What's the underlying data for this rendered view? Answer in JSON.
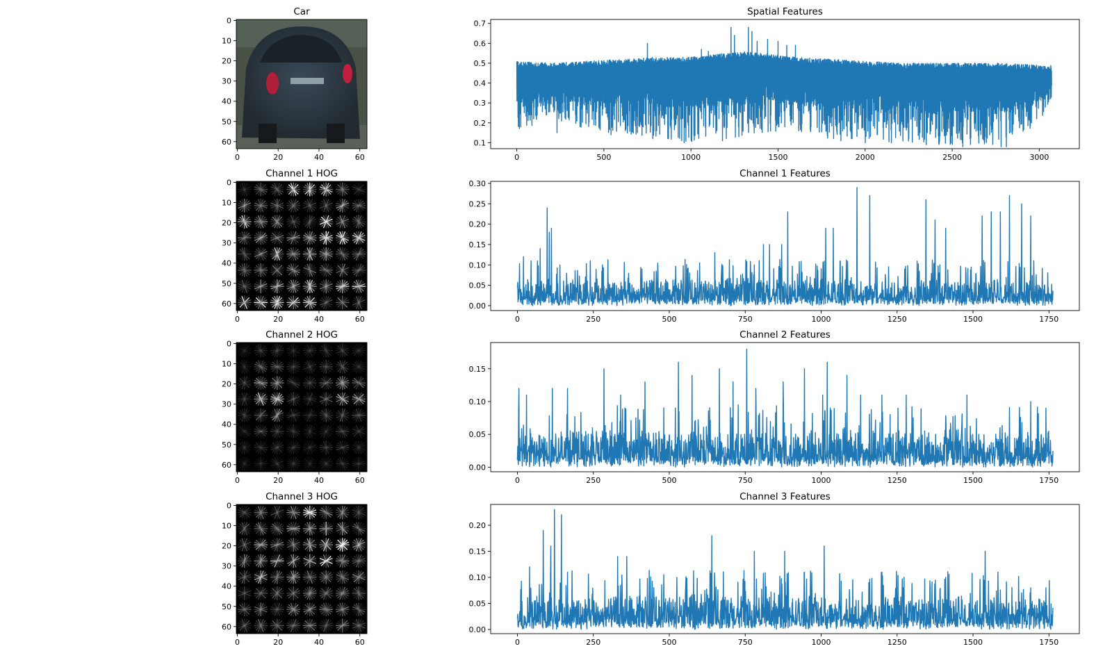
{
  "colors": {
    "line": "#1f77b4",
    "background": "#ffffff",
    "axes": "#000000"
  },
  "images": [
    {
      "title": "Car",
      "kind": "photo",
      "xticks": [
        0,
        20,
        40,
        60
      ],
      "yticks": [
        0,
        10,
        20,
        30,
        40,
        50,
        60
      ],
      "extent": [
        0,
        64
      ]
    },
    {
      "title": "Channel 1 HOG",
      "kind": "hog",
      "cell_strength": [
        [
          0.2,
          0.45,
          0.4,
          0.85,
          0.9,
          0.8,
          0.55,
          0.3
        ],
        [
          0.6,
          0.55,
          0.45,
          0.4,
          0.35,
          0.4,
          0.6,
          0.45
        ],
        [
          0.8,
          0.7,
          0.55,
          0.4,
          0.4,
          0.85,
          0.55,
          0.5
        ],
        [
          0.55,
          0.6,
          0.5,
          0.55,
          0.6,
          0.95,
          0.85,
          0.8
        ],
        [
          0.4,
          0.55,
          0.9,
          0.6,
          0.7,
          0.6,
          0.55,
          0.45
        ],
        [
          0.4,
          0.5,
          0.5,
          0.55,
          0.55,
          0.6,
          0.55,
          0.45
        ],
        [
          0.5,
          0.6,
          0.65,
          0.75,
          0.8,
          0.6,
          0.7,
          0.75
        ],
        [
          0.9,
          0.85,
          0.85,
          0.85,
          0.8,
          0.45,
          0.6,
          0.4
        ]
      ]
    },
    {
      "title": "Channel 2 HOG",
      "kind": "hog",
      "cell_strength": [
        [
          0.15,
          0.3,
          0.25,
          0.2,
          0.2,
          0.25,
          0.3,
          0.2
        ],
        [
          0.2,
          0.4,
          0.35,
          0.25,
          0.25,
          0.3,
          0.35,
          0.25
        ],
        [
          0.3,
          0.6,
          0.55,
          0.3,
          0.3,
          0.4,
          0.55,
          0.5
        ],
        [
          0.3,
          0.95,
          0.9,
          0.35,
          0.3,
          0.45,
          0.75,
          0.7
        ],
        [
          0.25,
          0.55,
          0.65,
          0.3,
          0.25,
          0.35,
          0.4,
          0.35
        ],
        [
          0.2,
          0.3,
          0.3,
          0.25,
          0.2,
          0.3,
          0.35,
          0.25
        ],
        [
          0.15,
          0.25,
          0.25,
          0.2,
          0.2,
          0.25,
          0.3,
          0.2
        ],
        [
          0.15,
          0.2,
          0.2,
          0.2,
          0.15,
          0.2,
          0.25,
          0.2
        ]
      ]
    },
    {
      "title": "Channel 3 HOG",
      "kind": "hog",
      "cell_strength": [
        [
          0.3,
          0.55,
          0.4,
          0.85,
          0.9,
          0.65,
          0.5,
          0.35
        ],
        [
          0.45,
          0.55,
          0.5,
          0.6,
          0.55,
          0.7,
          0.65,
          0.45
        ],
        [
          0.5,
          0.6,
          0.55,
          0.65,
          0.7,
          0.75,
          0.95,
          0.7
        ],
        [
          0.55,
          0.6,
          0.8,
          0.65,
          0.8,
          0.85,
          0.7,
          0.6
        ],
        [
          0.4,
          0.7,
          0.5,
          0.55,
          0.55,
          0.6,
          0.65,
          0.55
        ],
        [
          0.35,
          0.45,
          0.45,
          0.5,
          0.5,
          0.5,
          0.5,
          0.45
        ],
        [
          0.4,
          0.5,
          0.5,
          0.55,
          0.55,
          0.5,
          0.55,
          0.45
        ],
        [
          0.45,
          0.5,
          0.45,
          0.5,
          0.5,
          0.45,
          0.5,
          0.45
        ]
      ]
    }
  ],
  "chart_data": [
    {
      "type": "line",
      "title": "Spatial Features",
      "xlabel": "",
      "ylabel": "",
      "xlim": [
        -150,
        3230
      ],
      "ylim": [
        0.07,
        0.72
      ],
      "xticks": [
        0,
        500,
        1000,
        1500,
        2000,
        2500,
        3000
      ],
      "yticks": [
        0.1,
        0.2,
        0.3,
        0.4,
        0.5,
        0.6,
        0.7
      ],
      "grid": false,
      "n": 3072,
      "envelope": {
        "x": [
          0,
          200,
          400,
          600,
          800,
          1000,
          1200,
          1300,
          1400,
          1500,
          1600,
          1800,
          2000,
          2200,
          2400,
          2600,
          2800,
          3000,
          3072
        ],
        "upper": [
          0.51,
          0.5,
          0.51,
          0.52,
          0.53,
          0.53,
          0.55,
          0.56,
          0.55,
          0.54,
          0.53,
          0.52,
          0.51,
          0.5,
          0.5,
          0.5,
          0.5,
          0.49,
          0.49
        ],
        "lower": [
          0.16,
          0.22,
          0.17,
          0.14,
          0.13,
          0.1,
          0.11,
          0.12,
          0.14,
          0.16,
          0.15,
          0.12,
          0.11,
          0.1,
          0.09,
          0.09,
          0.09,
          0.2,
          0.32
        ]
      },
      "upper_spikes": [
        [
          750,
          0.6
        ],
        [
          1230,
          0.68
        ],
        [
          1250,
          0.64
        ],
        [
          1330,
          0.68
        ],
        [
          1350,
          0.66
        ],
        [
          1380,
          0.61
        ],
        [
          1440,
          0.62
        ],
        [
          1500,
          0.61
        ],
        [
          1550,
          0.59
        ],
        [
          1600,
          0.59
        ],
        [
          1060,
          0.57
        ],
        [
          1100,
          0.56
        ]
      ],
      "lower_dips": [
        [
          230,
          0.15
        ],
        [
          540,
          0.14
        ],
        [
          780,
          0.12
        ],
        [
          960,
          0.1
        ],
        [
          1180,
          0.11
        ],
        [
          1860,
          0.11
        ],
        [
          2000,
          0.1
        ],
        [
          2150,
          0.1
        ],
        [
          2350,
          0.09
        ],
        [
          2560,
          0.08
        ],
        [
          2780,
          0.08
        ],
        [
          2810,
          0.08
        ]
      ]
    },
    {
      "type": "line",
      "title": "Channel 1 Features",
      "xlabel": "",
      "ylabel": "",
      "xlim": [
        -88,
        1850
      ],
      "ylim": [
        -0.012,
        0.305
      ],
      "xticks": [
        0,
        250,
        500,
        750,
        1000,
        1250,
        1500,
        1750
      ],
      "yticks": [
        0.0,
        0.05,
        0.1,
        0.15,
        0.2,
        0.25,
        0.3
      ],
      "grid": false,
      "n": 1764,
      "noise_range": [
        0.0,
        0.06
      ],
      "peaks": [
        [
          20,
          0.12
        ],
        [
          45,
          0.11
        ],
        [
          75,
          0.14
        ],
        [
          98,
          0.24
        ],
        [
          105,
          0.18
        ],
        [
          112,
          0.19
        ],
        [
          140,
          0.1
        ],
        [
          240,
          0.11
        ],
        [
          280,
          0.1
        ],
        [
          410,
          0.09
        ],
        [
          560,
          0.09
        ],
        [
          650,
          0.13
        ],
        [
          780,
          0.1
        ],
        [
          810,
          0.15
        ],
        [
          830,
          0.15
        ],
        [
          870,
          0.15
        ],
        [
          890,
          0.23
        ],
        [
          1015,
          0.19
        ],
        [
          1040,
          0.19
        ],
        [
          1118,
          0.29
        ],
        [
          1160,
          0.27
        ],
        [
          1345,
          0.26
        ],
        [
          1375,
          0.21
        ],
        [
          1410,
          0.19
        ],
        [
          1530,
          0.22
        ],
        [
          1560,
          0.23
        ],
        [
          1590,
          0.23
        ],
        [
          1620,
          0.27
        ],
        [
          1660,
          0.25
        ],
        [
          1690,
          0.22
        ]
      ]
    },
    {
      "type": "line",
      "title": "Channel 2 Features",
      "xlabel": "",
      "ylabel": "",
      "xlim": [
        -88,
        1850
      ],
      "ylim": [
        -0.007,
        0.19
      ],
      "xticks": [
        0,
        250,
        500,
        750,
        1000,
        1250,
        1500,
        1750
      ],
      "yticks": [
        0.0,
        0.05,
        0.1,
        0.15
      ],
      "grid": false,
      "n": 1764,
      "noise_range": [
        0.0,
        0.05
      ],
      "peaks": [
        [
          5,
          0.12
        ],
        [
          30,
          0.11
        ],
        [
          115,
          0.12
        ],
        [
          165,
          0.12
        ],
        [
          285,
          0.15
        ],
        [
          340,
          0.11
        ],
        [
          420,
          0.13
        ],
        [
          530,
          0.16
        ],
        [
          575,
          0.14
        ],
        [
          665,
          0.15
        ],
        [
          710,
          0.13
        ],
        [
          755,
          0.18
        ],
        [
          785,
          0.12
        ],
        [
          875,
          0.13
        ],
        [
          945,
          0.15
        ],
        [
          1005,
          0.11
        ],
        [
          1020,
          0.16
        ],
        [
          1085,
          0.14
        ],
        [
          1130,
          0.11
        ],
        [
          1200,
          0.11
        ],
        [
          1280,
          0.11
        ],
        [
          1480,
          0.11
        ],
        [
          1690,
          0.1
        ],
        [
          1740,
          0.09
        ]
      ]
    },
    {
      "type": "line",
      "title": "Channel 3 Features",
      "xlabel": "",
      "ylabel": "",
      "xlim": [
        -88,
        1850
      ],
      "ylim": [
        -0.008,
        0.24
      ],
      "xticks": [
        0,
        250,
        500,
        750,
        1000,
        1250,
        1500,
        1750
      ],
      "yticks": [
        0.0,
        0.05,
        0.1,
        0.15,
        0.2
      ],
      "grid": false,
      "n": 1764,
      "noise_range": [
        0.0,
        0.06
      ],
      "peaks": [
        [
          40,
          0.12
        ],
        [
          85,
          0.19
        ],
        [
          110,
          0.16
        ],
        [
          122,
          0.23
        ],
        [
          145,
          0.22
        ],
        [
          165,
          0.11
        ],
        [
          330,
          0.14
        ],
        [
          360,
          0.14
        ],
        [
          525,
          0.1
        ],
        [
          640,
          0.18
        ],
        [
          780,
          0.15
        ],
        [
          880,
          0.15
        ],
        [
          1010,
          0.16
        ],
        [
          1200,
          0.11
        ],
        [
          1410,
          0.1
        ],
        [
          1540,
          0.15
        ],
        [
          1690,
          0.08
        ],
        [
          1740,
          0.08
        ]
      ]
    }
  ]
}
